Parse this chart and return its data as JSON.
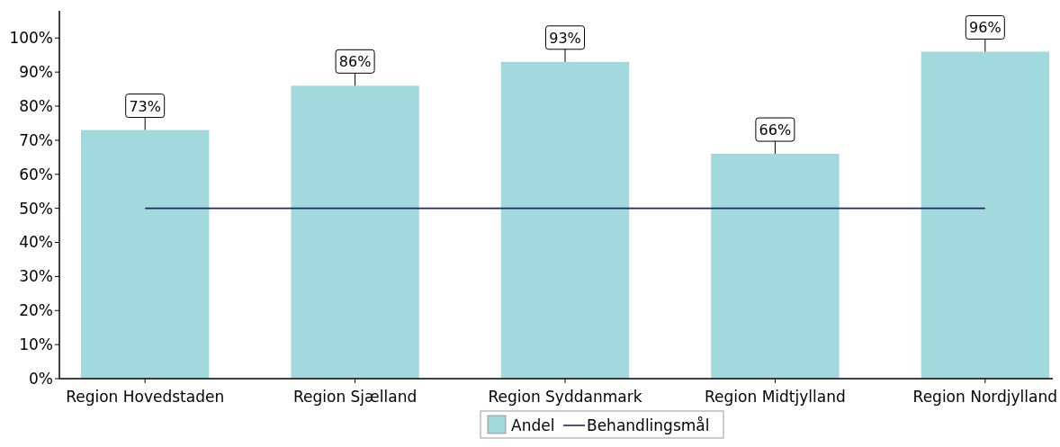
{
  "chart_data": {
    "type": "bar",
    "categories": [
      "Region Hovedstaden",
      "Region Sjælland",
      "Region Syddanmark",
      "Region Midtjylland",
      "Region Nordjylland"
    ],
    "series": [
      {
        "name": "Andel",
        "color": "#a1d9dc",
        "values": [
          73,
          86,
          93,
          66,
          96
        ],
        "value_labels": [
          "73%",
          "86%",
          "93%",
          "66%",
          "96%"
        ]
      },
      {
        "name": "Behandlingsmål",
        "type": "line",
        "color": "#1f2a5c",
        "values": [
          50,
          50,
          50,
          50,
          50
        ]
      }
    ],
    "ylim": [
      0,
      108
    ],
    "yticks": [
      {
        "value": 0,
        "label": "0%"
      },
      {
        "value": 10,
        "label": "10%"
      },
      {
        "value": 20,
        "label": "20%"
      },
      {
        "value": 30,
        "label": "30%"
      },
      {
        "value": 40,
        "label": "40%"
      },
      {
        "value": 50,
        "label": "50%"
      },
      {
        "value": 60,
        "label": "60%"
      },
      {
        "value": 70,
        "label": "70%"
      },
      {
        "value": 80,
        "label": "80%"
      },
      {
        "value": 90,
        "label": "90%"
      },
      {
        "value": 100,
        "label": "100%"
      }
    ],
    "grid": false,
    "legend": "bottom"
  }
}
